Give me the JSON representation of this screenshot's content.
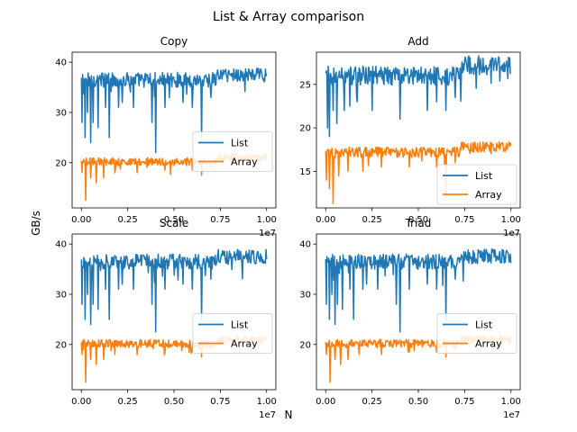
{
  "figure": {
    "suptitle": "List & Array comparison",
    "ylabel": "GB/s",
    "xlabel": "N"
  },
  "colors": {
    "list": "#1f77b4",
    "array": "#ff7f0e"
  },
  "chart_data": [
    {
      "type": "line",
      "title": "Copy",
      "xlim": [
        -0.05,
        1.05
      ],
      "ylim": [
        11,
        42
      ],
      "x_offset_label": "1e7",
      "x_ticks": [
        0,
        0.25,
        0.5,
        0.75,
        1.0
      ],
      "x_tick_labels": [
        "0.00",
        "0.25",
        "0.50",
        "0.75",
        "1.00"
      ],
      "y_ticks": [
        20,
        30,
        40
      ],
      "y_tick_labels": [
        "20",
        "30",
        "40"
      ],
      "legend_position": "center-right",
      "series": [
        {
          "name": "List",
          "color": "#1f77b4",
          "base": 36.5,
          "end": 37.5,
          "jitter": 1.5,
          "drops": [
            [
              0.005,
              28
            ],
            [
              0.02,
              25
            ],
            [
              0.035,
              30
            ],
            [
              0.05,
              24
            ],
            [
              0.065,
              28
            ],
            [
              0.09,
              27
            ],
            [
              0.13,
              31
            ],
            [
              0.15,
              25
            ],
            [
              0.2,
              31
            ],
            [
              0.22,
              32
            ],
            [
              0.28,
              31
            ],
            [
              0.38,
              28
            ],
            [
              0.4,
              22
            ],
            [
              0.45,
              31
            ],
            [
              0.55,
              32
            ],
            [
              0.6,
              31
            ],
            [
              0.65,
              25
            ],
            [
              0.7,
              33
            ]
          ]
        },
        {
          "name": "Array",
          "color": "#ff7f0e",
          "base": 20.2,
          "end": 21.0,
          "jitter": 0.8,
          "drops": [
            [
              0.005,
              18
            ],
            [
              0.025,
              12.5
            ],
            [
              0.05,
              17
            ],
            [
              0.08,
              16
            ],
            [
              0.12,
              17
            ],
            [
              0.18,
              18
            ],
            [
              0.3,
              18
            ],
            [
              0.45,
              18.5
            ],
            [
              0.6,
              18.5
            ],
            [
              0.65,
              17.5
            ],
            [
              0.7,
              19
            ]
          ]
        }
      ]
    },
    {
      "type": "line",
      "title": "Add",
      "xlim": [
        -0.05,
        1.05
      ],
      "ylim": [
        10.8,
        28.7
      ],
      "x_offset_label": "1e7",
      "x_ticks": [
        0,
        0.25,
        0.5,
        0.75,
        1.0
      ],
      "x_tick_labels": [
        "0.00",
        "0.25",
        "0.50",
        "0.75",
        "1.00"
      ],
      "y_ticks": [
        15,
        20,
        25
      ],
      "y_tick_labels": [
        "15",
        "20",
        "25"
      ],
      "legend_position": "lower-right",
      "series": [
        {
          "name": "List",
          "color": "#1f77b4",
          "base": 26.0,
          "end": 27.2,
          "jitter": 1.1,
          "drops": [
            [
              0.01,
              20
            ],
            [
              0.02,
              19
            ],
            [
              0.04,
              22
            ],
            [
              0.06,
              20.5
            ],
            [
              0.1,
              22
            ],
            [
              0.13,
              22.5
            ],
            [
              0.17,
              23
            ],
            [
              0.25,
              22
            ],
            [
              0.4,
              21
            ],
            [
              0.55,
              22
            ],
            [
              0.6,
              23
            ],
            [
              0.65,
              22
            ],
            [
              0.7,
              23.5
            ]
          ]
        },
        {
          "name": "Array",
          "color": "#ff7f0e",
          "base": 17.2,
          "end": 17.8,
          "jitter": 0.6,
          "drops": [
            [
              0.005,
              14
            ],
            [
              0.02,
              13
            ],
            [
              0.04,
              11.3
            ],
            [
              0.07,
              14.5
            ],
            [
              0.12,
              15
            ],
            [
              0.2,
              15
            ],
            [
              0.3,
              15.5
            ],
            [
              0.45,
              15.5
            ],
            [
              0.6,
              15.5
            ],
            [
              0.65,
              11.8
            ],
            [
              0.7,
              16
            ]
          ]
        }
      ]
    },
    {
      "type": "line",
      "title": "Scale",
      "xlim": [
        -0.05,
        1.05
      ],
      "ylim": [
        11,
        42
      ],
      "x_offset_label": "1e7",
      "x_ticks": [
        0,
        0.25,
        0.5,
        0.75,
        1.0
      ],
      "x_tick_labels": [
        "0.00",
        "0.25",
        "0.50",
        "0.75",
        "1.00"
      ],
      "y_ticks": [
        20,
        30,
        40
      ],
      "y_tick_labels": [
        "20",
        "30",
        "40"
      ],
      "legend_position": "center-right",
      "series": [
        {
          "name": "List",
          "color": "#1f77b4",
          "base": 36.5,
          "end": 37.5,
          "jitter": 1.5,
          "drops": [
            [
              0.005,
              28
            ],
            [
              0.02,
              25
            ],
            [
              0.035,
              30
            ],
            [
              0.05,
              24
            ],
            [
              0.065,
              28
            ],
            [
              0.09,
              27
            ],
            [
              0.13,
              31
            ],
            [
              0.15,
              25
            ],
            [
              0.2,
              31
            ],
            [
              0.22,
              32
            ],
            [
              0.28,
              31
            ],
            [
              0.38,
              28
            ],
            [
              0.4,
              22.5
            ],
            [
              0.45,
              31
            ],
            [
              0.55,
              32
            ],
            [
              0.6,
              31
            ],
            [
              0.65,
              25
            ],
            [
              0.7,
              33
            ]
          ]
        },
        {
          "name": "Array",
          "color": "#ff7f0e",
          "base": 20.2,
          "end": 21.0,
          "jitter": 0.8,
          "drops": [
            [
              0.005,
              18
            ],
            [
              0.025,
              12.5
            ],
            [
              0.05,
              17
            ],
            [
              0.08,
              16
            ],
            [
              0.12,
              17
            ],
            [
              0.18,
              18
            ],
            [
              0.3,
              18
            ],
            [
              0.45,
              18.5
            ],
            [
              0.6,
              18.5
            ],
            [
              0.65,
              17.5
            ],
            [
              0.7,
              19
            ]
          ]
        }
      ]
    },
    {
      "type": "line",
      "title": "Triad",
      "xlim": [
        -0.05,
        1.05
      ],
      "ylim": [
        11,
        42
      ],
      "x_offset_label": "1e7",
      "x_ticks": [
        0,
        0.25,
        0.5,
        0.75,
        1.0
      ],
      "x_tick_labels": [
        "0.00",
        "0.25",
        "0.50",
        "0.75",
        "1.00"
      ],
      "y_ticks": [
        20,
        30,
        40
      ],
      "y_tick_labels": [
        "20",
        "30",
        "40"
      ],
      "legend_position": "center-right",
      "series": [
        {
          "name": "List",
          "color": "#1f77b4",
          "base": 36.5,
          "end": 37.5,
          "jitter": 1.5,
          "drops": [
            [
              0.005,
              28
            ],
            [
              0.02,
              25
            ],
            [
              0.035,
              30
            ],
            [
              0.05,
              24
            ],
            [
              0.065,
              28
            ],
            [
              0.09,
              27
            ],
            [
              0.13,
              31
            ],
            [
              0.15,
              25
            ],
            [
              0.2,
              31
            ],
            [
              0.22,
              32
            ],
            [
              0.28,
              31
            ],
            [
              0.38,
              28
            ],
            [
              0.4,
              22.5
            ],
            [
              0.45,
              31
            ],
            [
              0.55,
              32
            ],
            [
              0.6,
              31
            ],
            [
              0.65,
              25
            ],
            [
              0.7,
              33
            ]
          ]
        },
        {
          "name": "Array",
          "color": "#ff7f0e",
          "base": 20.2,
          "end": 21.0,
          "jitter": 0.8,
          "drops": [
            [
              0.005,
              18
            ],
            [
              0.025,
              12.5
            ],
            [
              0.05,
              17
            ],
            [
              0.08,
              16
            ],
            [
              0.12,
              17
            ],
            [
              0.18,
              18
            ],
            [
              0.3,
              18
            ],
            [
              0.45,
              18.5
            ],
            [
              0.6,
              18.5
            ],
            [
              0.65,
              17.5
            ],
            [
              0.7,
              19
            ]
          ]
        }
      ]
    }
  ]
}
